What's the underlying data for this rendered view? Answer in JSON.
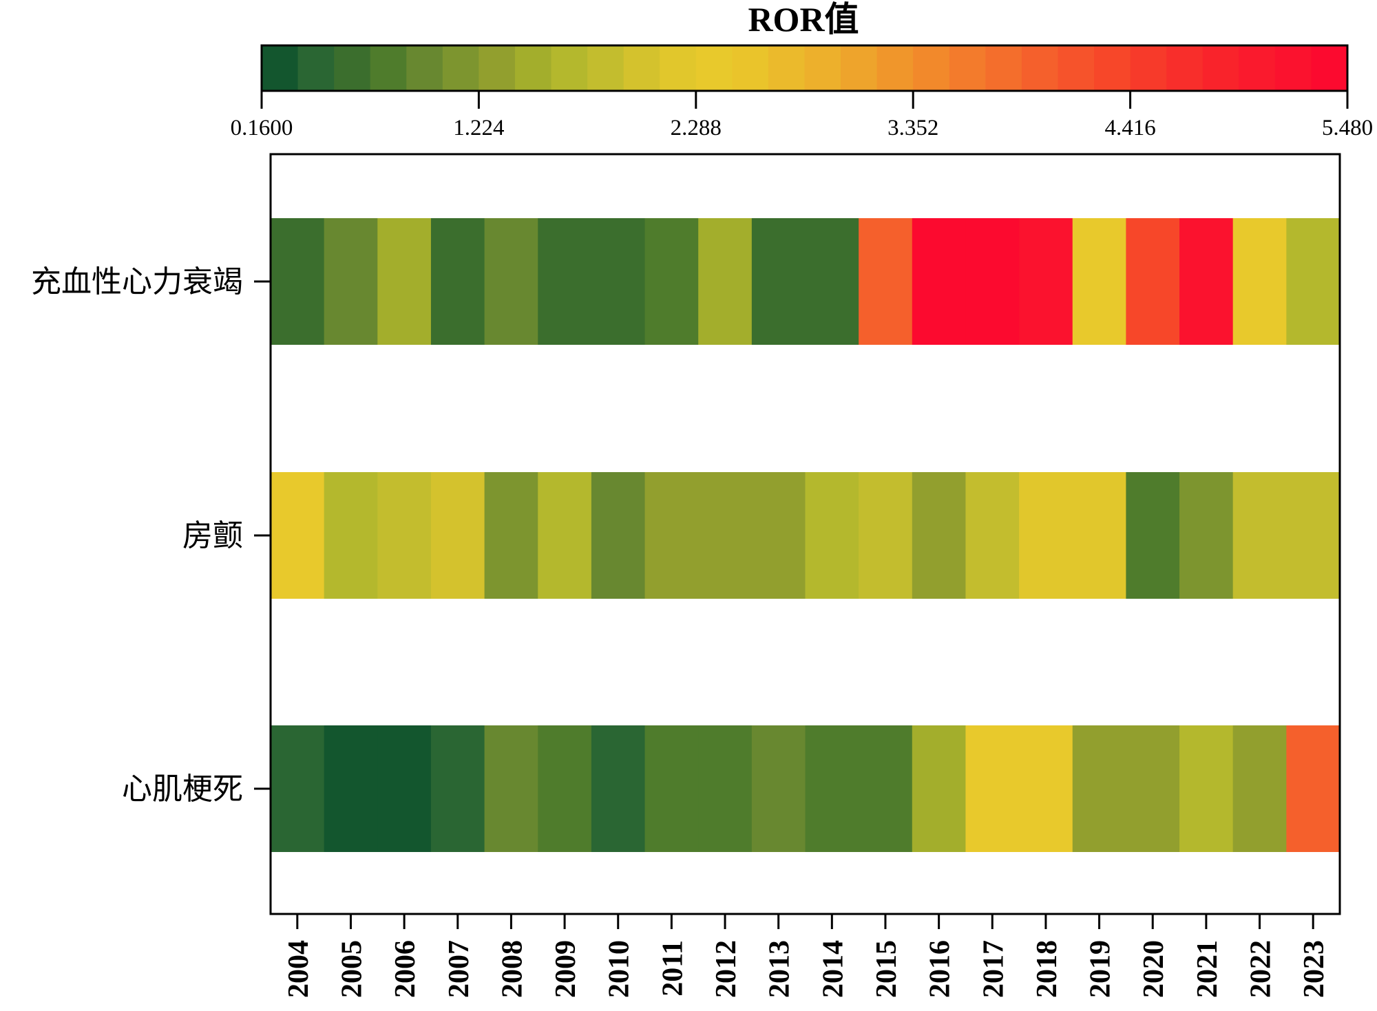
{
  "chart_data": {
    "type": "heatmap",
    "title": "ROR值",
    "colorbar": {
      "min": 0.16,
      "max": 5.48,
      "steps": 30,
      "ticks": [
        "0.1600",
        "1.224",
        "2.288",
        "3.352",
        "4.416",
        "5.480"
      ],
      "tick_values": [
        0.16,
        1.224,
        2.288,
        3.352,
        4.416,
        5.48
      ],
      "colors": [
        "#13562e",
        "#2a6633",
        "#3b6e2d",
        "#4f7c2c",
        "#688830",
        "#7d952f",
        "#929f2e",
        "#a3ae2c",
        "#b4b82d",
        "#c3bd2e",
        "#d4c22d",
        "#e1c72c",
        "#e8c92c",
        "#eac42b",
        "#ebba2c",
        "#edb02c",
        "#eea42c",
        "#f0962b",
        "#f2892b",
        "#f37b2c",
        "#f46e2c",
        "#f5602c",
        "#f6532b",
        "#f74729",
        "#f73a2a",
        "#f82e2b",
        "#f9232b",
        "#fa1a2d",
        "#fb122e",
        "#fc0a2f"
      ]
    },
    "x_categories": [
      "2004",
      "2005",
      "2006",
      "2007",
      "2008",
      "2009",
      "2010",
      "2011",
      "2012",
      "2013",
      "2014",
      "2015",
      "2016",
      "2017",
      "2018",
      "2019",
      "2020",
      "2021",
      "2022",
      "2023"
    ],
    "rows": [
      {
        "name": "充血性心力衰竭",
        "values": [
          0.55,
          0.95,
          1.55,
          0.55,
          0.95,
          0.55,
          0.55,
          0.8,
          1.55,
          0.55,
          0.55,
          4.0,
          5.45,
          5.45,
          5.3,
          2.4,
          4.3,
          5.3,
          2.45,
          1.7
        ]
      },
      {
        "name": "房颤",
        "values": [
          2.4,
          1.75,
          1.8,
          2.0,
          1.05,
          1.75,
          0.95,
          1.25,
          1.4,
          1.25,
          1.6,
          1.9,
          1.4,
          1.85,
          2.25,
          2.25,
          0.7,
          1.05,
          1.85,
          1.85
        ]
      },
      {
        "name": "心肌梗死",
        "values": [
          0.5,
          0.2,
          0.2,
          0.35,
          0.95,
          0.8,
          0.35,
          0.8,
          0.8,
          0.95,
          0.8,
          0.8,
          1.55,
          2.3,
          2.3,
          1.4,
          1.4,
          1.7,
          1.4,
          3.95
        ]
      }
    ]
  }
}
